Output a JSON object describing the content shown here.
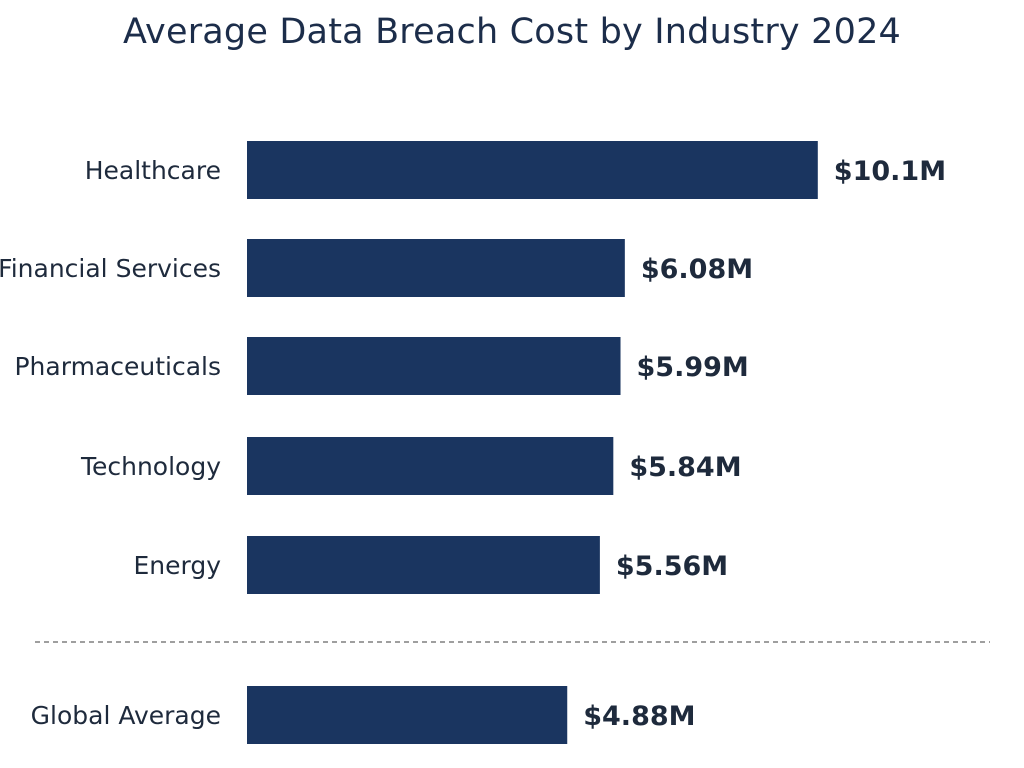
{
  "chart_data": {
    "type": "bar",
    "orientation": "horizontal",
    "title": "Average Data Breach Cost by Industry 2024",
    "xlabel": "",
    "ylabel": "",
    "unit": "USD millions",
    "grid": false,
    "bar_color": "#1a3560",
    "categories": [
      "Healthcare",
      "Financial Services",
      "Pharmaceuticals",
      "Technology",
      "Energy"
    ],
    "values": [
      10.1,
      6.08,
      5.99,
      5.84,
      5.56
    ],
    "labels": [
      "$10.1M",
      "$6.08M",
      "$5.99M",
      "$5.84M",
      "$5.56M"
    ],
    "reference": {
      "category": "Global Average",
      "value": 4.88,
      "label": "$4.88M",
      "separated_by": "dashed line"
    }
  }
}
